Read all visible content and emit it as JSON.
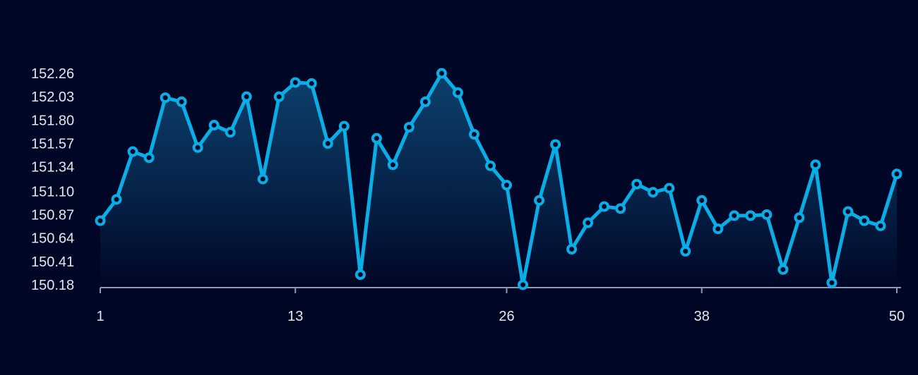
{
  "chart_data": {
    "type": "area",
    "title": "",
    "xlabel": "",
    "ylabel": "",
    "x_range": [
      1,
      50
    ],
    "ylim": [
      150.18,
      152.26
    ],
    "x_ticks": [
      "1",
      "13",
      "26",
      "38",
      "50"
    ],
    "y_ticks": [
      "150.18",
      "150.41",
      "150.64",
      "150.87",
      "151.10",
      "151.34",
      "151.57",
      "151.80",
      "152.03",
      "152.26"
    ],
    "grid": false,
    "legend": "none",
    "series": [
      {
        "x": [
          1,
          2,
          3,
          4,
          5,
          6,
          7,
          8,
          9,
          10,
          11,
          12,
          13,
          14,
          15,
          16,
          17,
          18,
          19,
          20,
          21,
          22,
          23,
          24,
          25,
          26,
          27,
          28,
          29,
          30,
          31,
          32,
          33,
          34,
          35,
          36,
          37,
          38,
          39,
          40,
          41,
          42,
          43,
          44,
          45,
          46,
          47,
          48,
          49,
          50
        ],
        "values": [
          150.81,
          151.02,
          151.49,
          151.43,
          152.02,
          151.98,
          151.53,
          151.75,
          151.68,
          152.03,
          151.22,
          152.03,
          152.17,
          152.16,
          151.57,
          151.74,
          150.28,
          151.62,
          151.36,
          151.73,
          151.98,
          152.26,
          152.07,
          151.66,
          151.35,
          151.16,
          150.18,
          151.01,
          151.56,
          150.53,
          150.79,
          150.95,
          150.93,
          151.17,
          151.09,
          151.13,
          150.51,
          151.01,
          150.73,
          150.86,
          150.86,
          150.87,
          150.33,
          150.84,
          151.36,
          150.2,
          150.9,
          150.81,
          150.76,
          151.27
        ]
      }
    ],
    "colors": {
      "background": "#000626",
      "line": "#0aaee6",
      "point_fill": "#000626",
      "area_top": "#0e4a78",
      "area_bottom": "#000626",
      "axis": "#8a9bb4",
      "tick_text": "#e4e6ee"
    }
  }
}
